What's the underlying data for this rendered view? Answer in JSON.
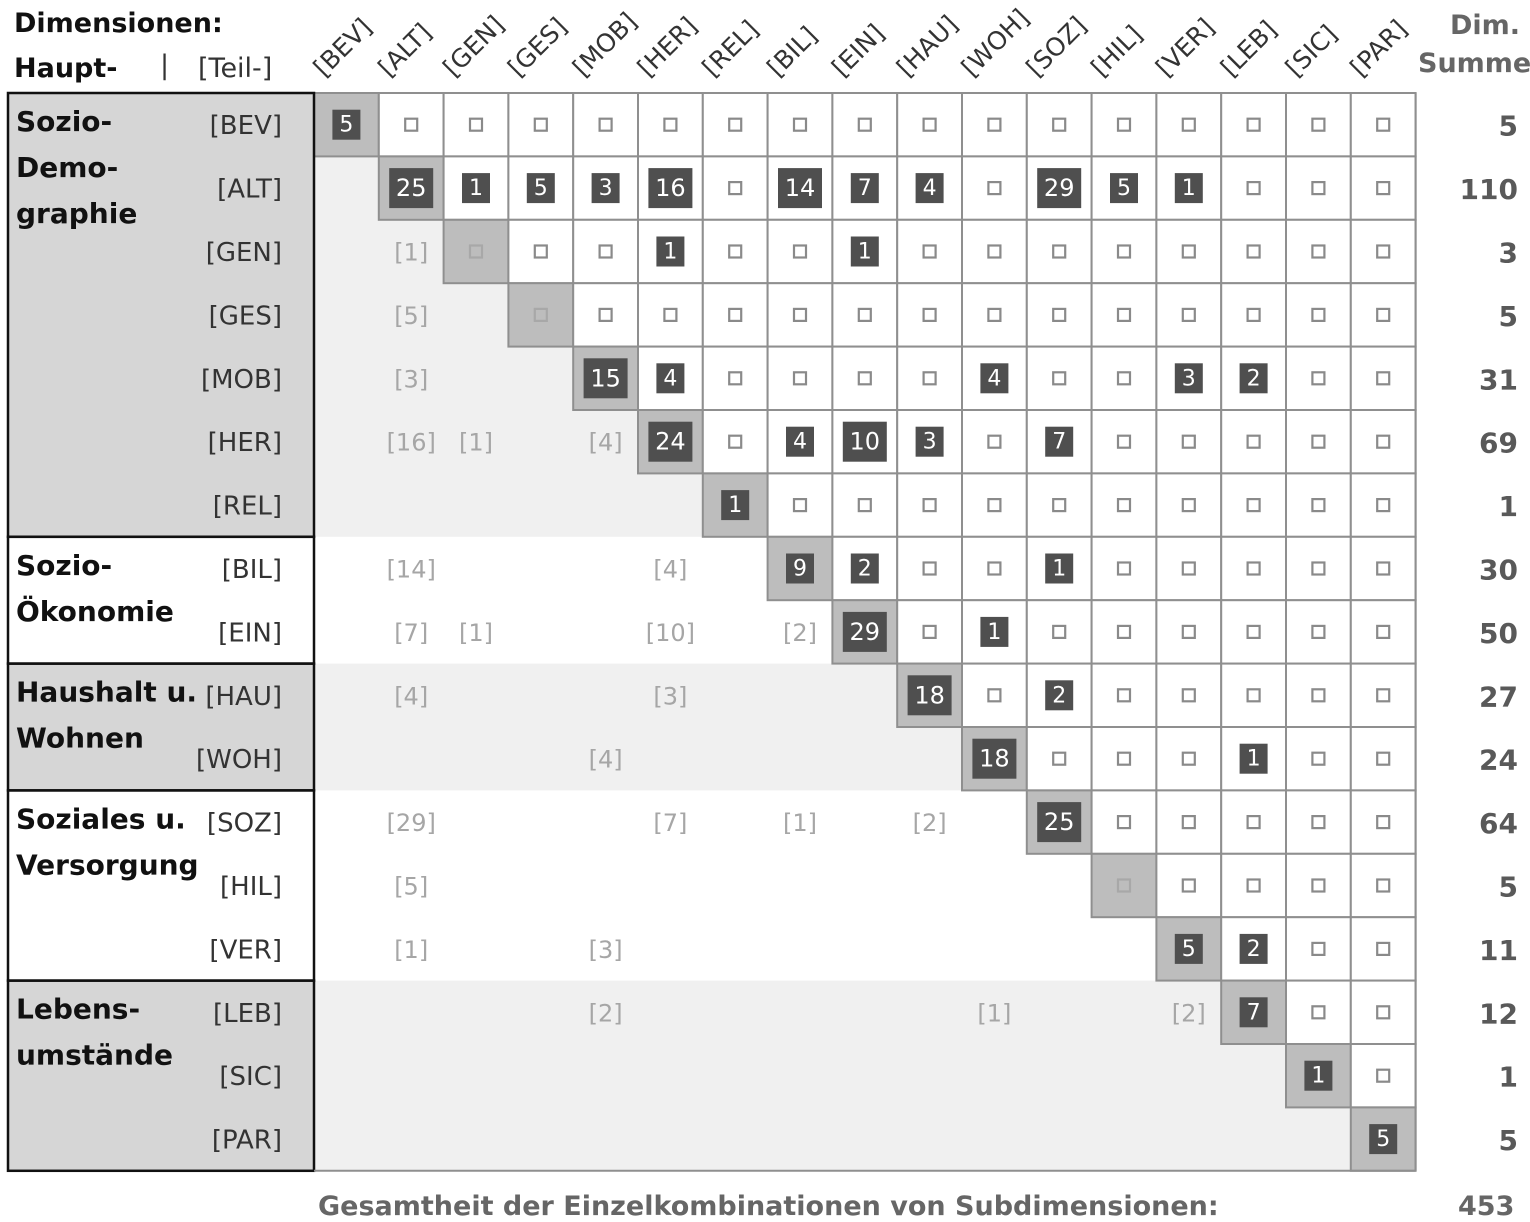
{
  "headers": {
    "dimensions": "Dimensionen:",
    "main": "Haupt-",
    "separator": "|",
    "sub": "[Teil-]",
    "sum_line1": "Dim.",
    "sum_line2": "Summe"
  },
  "footer": {
    "label": "Gesamtheit der Einzelkombinationen von Subdimensionen:",
    "total": "453"
  },
  "chart_data": {
    "type": "heatmap",
    "subdimensions": [
      "[BEV]",
      "[ALT]",
      "[GEN]",
      "[GES]",
      "[MOB]",
      "[HER]",
      "[REL]",
      "[BIL]",
      "[EIN]",
      "[HAU]",
      "[WOH]",
      "[SOZ]",
      "[HIL]",
      "[VER]",
      "[LEB]",
      "[SIC]",
      "[PAR]"
    ],
    "groups": [
      {
        "label": "Sozio-\nDemo-\ngraphie",
        "start": 0,
        "end": 6,
        "shaded": true
      },
      {
        "label": "Sozio-\nÖkonomie",
        "start": 7,
        "end": 8,
        "shaded": false
      },
      {
        "label": "Haushalt u.\nWohnen",
        "start": 9,
        "end": 10,
        "shaded": true
      },
      {
        "label": "Soziales u.\nVersorgung",
        "start": 11,
        "end": 13,
        "shaded": false
      },
      {
        "label": "Lebens-\numstände",
        "start": 14,
        "end": 16,
        "shaded": true
      }
    ],
    "upper_values": [
      {
        "row": 0,
        "col": 0,
        "value": 5
      },
      {
        "row": 1,
        "col": 1,
        "value": 25
      },
      {
        "row": 1,
        "col": 2,
        "value": 1
      },
      {
        "row": 1,
        "col": 3,
        "value": 5
      },
      {
        "row": 1,
        "col": 4,
        "value": 3
      },
      {
        "row": 1,
        "col": 5,
        "value": 16
      },
      {
        "row": 1,
        "col": 7,
        "value": 14
      },
      {
        "row": 1,
        "col": 8,
        "value": 7
      },
      {
        "row": 1,
        "col": 9,
        "value": 4
      },
      {
        "row": 1,
        "col": 11,
        "value": 29
      },
      {
        "row": 1,
        "col": 12,
        "value": 5
      },
      {
        "row": 1,
        "col": 13,
        "value": 1
      },
      {
        "row": 2,
        "col": 5,
        "value": 1
      },
      {
        "row": 2,
        "col": 8,
        "value": 1
      },
      {
        "row": 4,
        "col": 4,
        "value": 15
      },
      {
        "row": 4,
        "col": 5,
        "value": 4
      },
      {
        "row": 4,
        "col": 10,
        "value": 4
      },
      {
        "row": 4,
        "col": 13,
        "value": 3
      },
      {
        "row": 4,
        "col": 14,
        "value": 2
      },
      {
        "row": 5,
        "col": 5,
        "value": 24
      },
      {
        "row": 5,
        "col": 7,
        "value": 4
      },
      {
        "row": 5,
        "col": 8,
        "value": 10
      },
      {
        "row": 5,
        "col": 9,
        "value": 3
      },
      {
        "row": 5,
        "col": 11,
        "value": 7
      },
      {
        "row": 6,
        "col": 6,
        "value": 1
      },
      {
        "row": 7,
        "col": 7,
        "value": 9
      },
      {
        "row": 7,
        "col": 8,
        "value": 2
      },
      {
        "row": 7,
        "col": 11,
        "value": 1
      },
      {
        "row": 8,
        "col": 8,
        "value": 29
      },
      {
        "row": 8,
        "col": 10,
        "value": 1
      },
      {
        "row": 9,
        "col": 9,
        "value": 18
      },
      {
        "row": 9,
        "col": 11,
        "value": 2
      },
      {
        "row": 10,
        "col": 10,
        "value": 18
      },
      {
        "row": 10,
        "col": 14,
        "value": 1
      },
      {
        "row": 11,
        "col": 11,
        "value": 25
      },
      {
        "row": 13,
        "col": 13,
        "value": 5
      },
      {
        "row": 13,
        "col": 14,
        "value": 2
      },
      {
        "row": 14,
        "col": 14,
        "value": 7
      },
      {
        "row": 15,
        "col": 15,
        "value": 1
      },
      {
        "row": 16,
        "col": 16,
        "value": 5
      }
    ],
    "mirror_labels": [
      {
        "row": 2,
        "col": 1,
        "text": "[1]"
      },
      {
        "row": 3,
        "col": 1,
        "text": "[5]"
      },
      {
        "row": 4,
        "col": 1,
        "text": "[3]"
      },
      {
        "row": 5,
        "col": 1,
        "text": "[16]"
      },
      {
        "row": 5,
        "col": 2,
        "text": "[1]"
      },
      {
        "row": 5,
        "col": 4,
        "text": "[4]"
      },
      {
        "row": 7,
        "col": 1,
        "text": "[14]"
      },
      {
        "row": 7,
        "col": 5,
        "text": "[4]"
      },
      {
        "row": 8,
        "col": 1,
        "text": "[7]"
      },
      {
        "row": 8,
        "col": 2,
        "text": "[1]"
      },
      {
        "row": 8,
        "col": 5,
        "text": "[10]"
      },
      {
        "row": 8,
        "col": 7,
        "text": "[2]"
      },
      {
        "row": 9,
        "col": 1,
        "text": "[4]"
      },
      {
        "row": 9,
        "col": 5,
        "text": "[3]"
      },
      {
        "row": 10,
        "col": 4,
        "text": "[4]"
      },
      {
        "row": 11,
        "col": 1,
        "text": "[29]"
      },
      {
        "row": 11,
        "col": 5,
        "text": "[7]"
      },
      {
        "row": 11,
        "col": 7,
        "text": "[1]"
      },
      {
        "row": 11,
        "col": 9,
        "text": "[2]"
      },
      {
        "row": 12,
        "col": 1,
        "text": "[5]"
      },
      {
        "row": 13,
        "col": 1,
        "text": "[1]"
      },
      {
        "row": 13,
        "col": 4,
        "text": "[3]"
      },
      {
        "row": 14,
        "col": 4,
        "text": "[2]"
      },
      {
        "row": 14,
        "col": 10,
        "text": "[1]"
      },
      {
        "row": 14,
        "col": 13,
        "text": "[2]"
      }
    ],
    "row_sums": [
      5,
      110,
      3,
      5,
      31,
      69,
      1,
      30,
      50,
      27,
      24,
      64,
      5,
      11,
      12,
      1,
      5
    ],
    "total": 453,
    "colors": {
      "value_box": "#4f4f4f",
      "diagonal_cell": "#bdbdbd",
      "group_shade": "#d6d6d6",
      "row_band_shade": "#f0f0f0",
      "grid_line": "#8f8f8f",
      "mirror_text": "#a6a6a6",
      "sum_text": "#595959",
      "empty_marker": "#8a8a8a"
    }
  }
}
